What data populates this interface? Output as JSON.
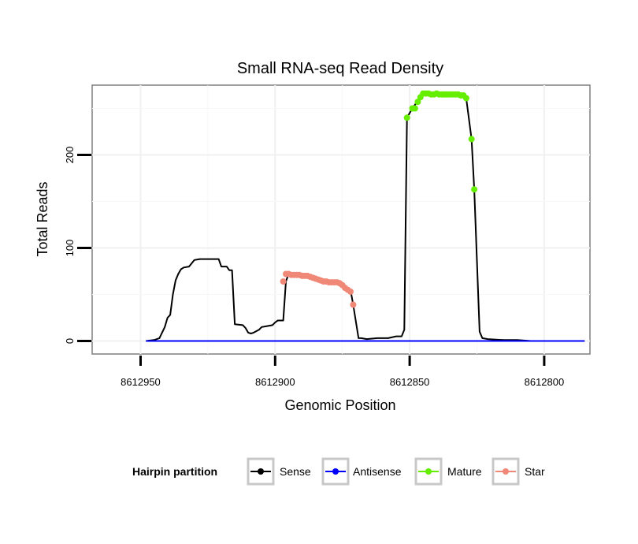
{
  "chart_data": {
    "type": "line",
    "title": "Small RNA-seq Read Density",
    "xlabel": "Genomic Position",
    "ylabel": "Total Reads",
    "x_reversed": true,
    "xlim": [
      8612968,
      8612783
    ],
    "ylim": [
      -14,
      275
    ],
    "x_ticks": [
      8612950,
      8612900,
      8612850,
      8612800
    ],
    "x_tick_labels": [
      "8612950",
      "8612900",
      "8612850",
      "8612800"
    ],
    "y_ticks": [
      0,
      100,
      200
    ],
    "y_tick_labels": [
      "0",
      "100",
      "200"
    ],
    "grid": true,
    "legend": {
      "title": "Hairpin partition",
      "position": "bottom",
      "entries": [
        "Sense",
        "Antisense",
        "Mature",
        "Star"
      ]
    },
    "colors": {
      "Sense": "#000000",
      "Antisense": "#0000ff",
      "Mature": "#66ee00",
      "Star": "#f08878"
    },
    "series": [
      {
        "name": "Sense",
        "points": [
          [
            8612948,
            0
          ],
          [
            8612945,
            1
          ],
          [
            8612943,
            3
          ],
          [
            8612941,
            15
          ],
          [
            8612940,
            25
          ],
          [
            8612939,
            28
          ],
          [
            8612938,
            50
          ],
          [
            8612937,
            65
          ],
          [
            8612936,
            72
          ],
          [
            8612935,
            77
          ],
          [
            8612934,
            79
          ],
          [
            8612932,
            80
          ],
          [
            8612930,
            87
          ],
          [
            8612928,
            88
          ],
          [
            8612921,
            88
          ],
          [
            8612920,
            80
          ],
          [
            8612918,
            80
          ],
          [
            8612917,
            76
          ],
          [
            8612916,
            76
          ],
          [
            8612915,
            18
          ],
          [
            8612912,
            17
          ],
          [
            8612911,
            14
          ],
          [
            8612910,
            9
          ],
          [
            8612909,
            8
          ],
          [
            8612908,
            9
          ],
          [
            8612906,
            12
          ],
          [
            8612905,
            15
          ],
          [
            8612903,
            16
          ],
          [
            8612901,
            17
          ],
          [
            8612900,
            20
          ],
          [
            8612899,
            22
          ],
          [
            8612897,
            22
          ],
          [
            8612896,
            64
          ],
          [
            8612895,
            72
          ],
          [
            8612893,
            72
          ],
          [
            8612890,
            71
          ],
          [
            8612887,
            70
          ],
          [
            8612884,
            67
          ],
          [
            8612881,
            64
          ],
          [
            8612878,
            63
          ],
          [
            8612876,
            62
          ],
          [
            8612874,
            58
          ],
          [
            8612872,
            55
          ],
          [
            8612871,
            39
          ],
          [
            8612869,
            3
          ],
          [
            8612868,
            3
          ],
          [
            8612866,
            2
          ],
          [
            8612862,
            3
          ],
          [
            8612860,
            3
          ],
          [
            8612858,
            3
          ],
          [
            8612855,
            5
          ],
          [
            8612853,
            5
          ],
          [
            8612852,
            12
          ],
          [
            8612851,
            240
          ],
          [
            8612849,
            250
          ],
          [
            8612847,
            258
          ],
          [
            8612846,
            264
          ],
          [
            8612845,
            266
          ],
          [
            8612843,
            266
          ],
          [
            8612840,
            265
          ],
          [
            8612837,
            265
          ],
          [
            8612834,
            265
          ],
          [
            8612831,
            265
          ],
          [
            8612829,
            261
          ],
          [
            8612827,
            217
          ],
          [
            8612826,
            163
          ],
          [
            8612824,
            10
          ],
          [
            8612823,
            3
          ],
          [
            8612821,
            2
          ],
          [
            8612815,
            1
          ],
          [
            8612810,
            1
          ],
          [
            8612805,
            0
          ],
          [
            8612800,
            0
          ],
          [
            8612785,
            0
          ]
        ]
      },
      {
        "name": "Antisense",
        "points": [
          [
            8612948,
            0
          ],
          [
            8612785,
            0
          ]
        ]
      },
      {
        "name": "Mature",
        "points": [
          [
            8612851,
            240
          ],
          [
            8612849,
            250
          ],
          [
            8612848,
            250
          ],
          [
            8612847,
            257
          ],
          [
            8612846,
            262
          ],
          [
            8612845,
            266
          ],
          [
            8612844,
            266
          ],
          [
            8612843,
            266
          ],
          [
            8612842,
            265
          ],
          [
            8612841,
            265
          ],
          [
            8612840,
            266
          ],
          [
            8612839,
            265
          ],
          [
            8612838,
            265
          ],
          [
            8612837,
            265
          ],
          [
            8612836,
            265
          ],
          [
            8612835,
            265
          ],
          [
            8612834,
            265
          ],
          [
            8612833,
            265
          ],
          [
            8612832,
            265
          ],
          [
            8612831,
            264
          ],
          [
            8612830,
            264
          ],
          [
            8612829,
            261
          ],
          [
            8612827,
            217
          ],
          [
            8612826,
            163
          ]
        ]
      },
      {
        "name": "Star",
        "points": [
          [
            8612897,
            64
          ],
          [
            8612896,
            72
          ],
          [
            8612895,
            72
          ],
          [
            8612894,
            71
          ],
          [
            8612893,
            71
          ],
          [
            8612892,
            71
          ],
          [
            8612891,
            71
          ],
          [
            8612890,
            70
          ],
          [
            8612889,
            70
          ],
          [
            8612888,
            70
          ],
          [
            8612887,
            69
          ],
          [
            8612886,
            68
          ],
          [
            8612885,
            67
          ],
          [
            8612884,
            66
          ],
          [
            8612883,
            65
          ],
          [
            8612882,
            64
          ],
          [
            8612881,
            64
          ],
          [
            8612880,
            63
          ],
          [
            8612879,
            63
          ],
          [
            8612878,
            63
          ],
          [
            8612877,
            63
          ],
          [
            8612876,
            62
          ],
          [
            8612875,
            60
          ],
          [
            8612874,
            57
          ],
          [
            8612873,
            55
          ],
          [
            8612872,
            53
          ],
          [
            8612871,
            39
          ]
        ]
      }
    ]
  }
}
